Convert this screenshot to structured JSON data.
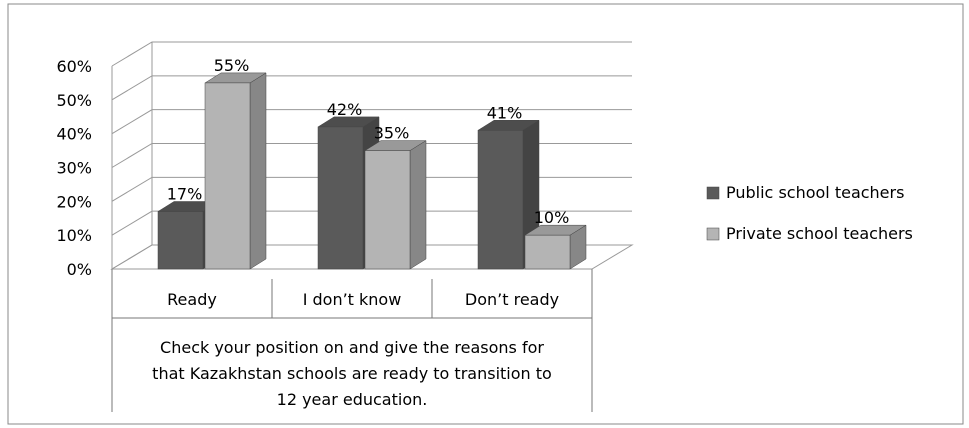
{
  "chart_data": {
    "type": "bar",
    "categories": [
      "Ready",
      "I don’t know",
      "Don’t ready"
    ],
    "series": [
      {
        "name": "Public school teachers",
        "values": [
          17,
          42,
          41
        ],
        "data_labels": [
          "17%",
          "42%",
          "41%"
        ],
        "color": "#5a5a5a"
      },
      {
        "name": "Private school teachers",
        "values": [
          55,
          35,
          10
        ],
        "data_labels": [
          "55%",
          "35%",
          "10%"
        ],
        "color": "#b4b4b4"
      }
    ],
    "ylim": [
      0,
      60
    ],
    "y_ticks": [
      "0%",
      "10%",
      "20%",
      "30%",
      "40%",
      "50%",
      "60%"
    ],
    "xlabel": "Check your position on and give the reasons for that Kazakhstan schools are ready to transition to 12 year education.",
    "xlabel_lines": [
      "Check your position on and give the reasons for",
      "that Kazakhstan schools are ready to transition to",
      "12 year education."
    ],
    "legend_position": "right",
    "grid": true,
    "style": "3d-clustered-column"
  }
}
